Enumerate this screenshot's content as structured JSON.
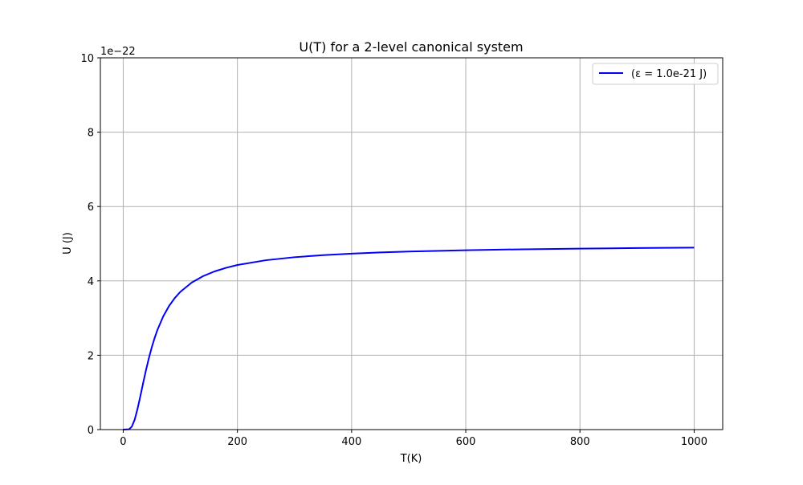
{
  "chart_data": {
    "type": "line",
    "title": "U(T) for a 2-level canonical system",
    "xlabel": "T(K)",
    "ylabel": "U (J)",
    "y_offset_text": "1e−22",
    "xlim": [
      -40,
      1050
    ],
    "ylim": [
      0,
      10
    ],
    "x_ticks": [
      0,
      200,
      400,
      600,
      800,
      1000
    ],
    "y_ticks": [
      0,
      2,
      4,
      6,
      8,
      10
    ],
    "grid": true,
    "legend_placement": "top-right",
    "series": [
      {
        "name": "(ε = 1.0e-21 J)",
        "color": "#0000ff",
        "x": [
          0,
          10,
          15,
          20,
          25,
          30,
          35,
          40,
          45,
          50,
          55,
          60,
          70,
          80,
          90,
          100,
          120,
          140,
          160,
          180,
          200,
          250,
          300,
          350,
          400,
          450,
          500,
          600,
          700,
          800,
          900,
          1000
        ],
        "y": [
          0.0,
          0.007,
          0.079,
          0.263,
          0.552,
          0.898,
          1.258,
          1.606,
          1.926,
          2.212,
          2.464,
          2.684,
          3.043,
          3.318,
          3.533,
          3.704,
          3.955,
          4.128,
          4.255,
          4.351,
          4.427,
          4.556,
          4.637,
          4.693,
          4.734,
          4.765,
          4.79,
          4.825,
          4.85,
          4.868,
          4.883,
          4.894
        ]
      }
    ]
  }
}
